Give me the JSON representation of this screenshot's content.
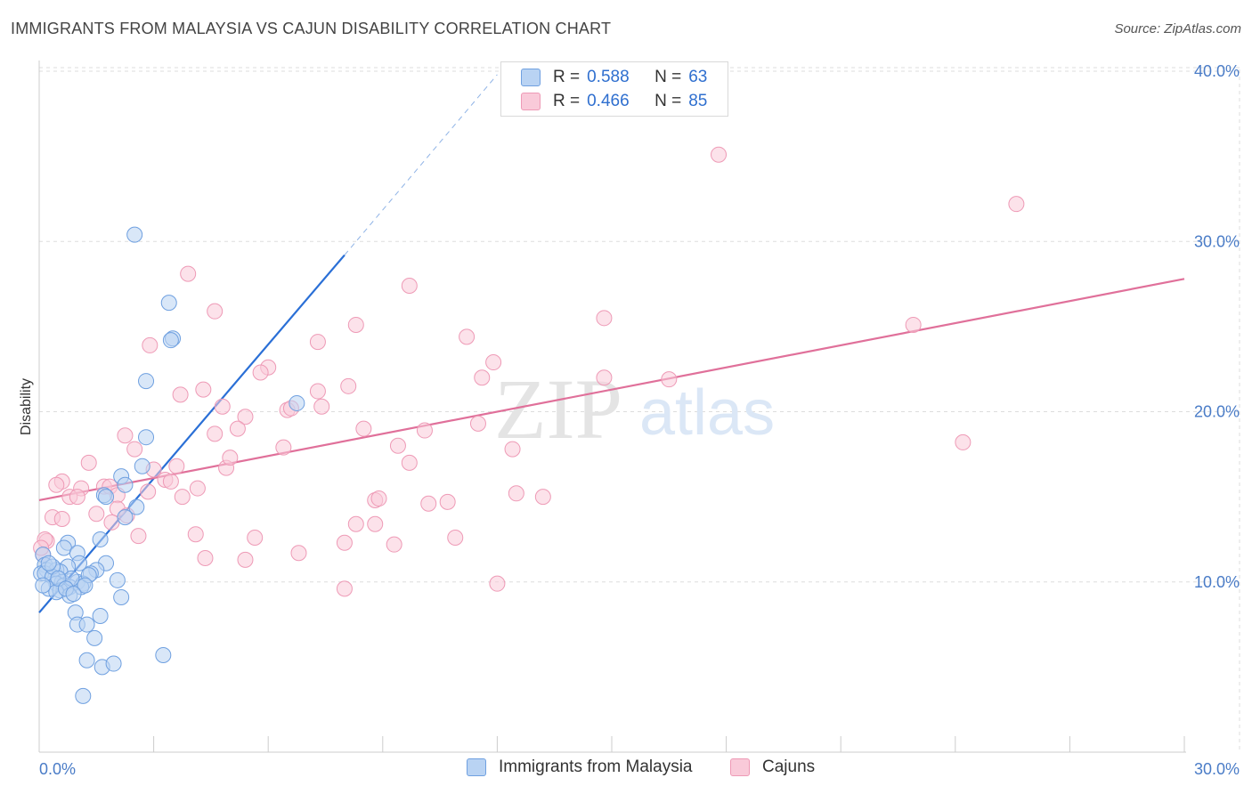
{
  "title": "IMMIGRANTS FROM MALAYSIA VS CAJUN DISABILITY CORRELATION CHART",
  "source": "Source: ZipAtlas.com",
  "watermark": {
    "zip": "ZIP",
    "atlas": "atlas"
  },
  "legend_top": {
    "rows": [
      {
        "r_label": "R =",
        "r_value": "0.588",
        "n_label": "N =",
        "n_value": "63"
      },
      {
        "r_label": "R =",
        "r_value": "0.466",
        "n_label": "N =",
        "n_value": "85"
      }
    ]
  },
  "legend_bottom": {
    "series_a": "Immigrants from Malaysia",
    "series_b": "Cajuns"
  },
  "colors": {
    "blue_fill": "#b9d3f3",
    "blue_stroke": "#6fa0e0",
    "blue_line": "#2a6fd6",
    "pink_fill": "#f9cad9",
    "pink_stroke": "#ee9ab6",
    "pink_line": "#e0709a",
    "tick_color": "#4a7cc7",
    "grid": "#dddddd"
  },
  "chart_data": {
    "type": "scatter",
    "title": "IMMIGRANTS FROM MALAYSIA VS CAJUN DISABILITY CORRELATION CHART",
    "xlabel": "",
    "ylabel": "Disability",
    "xlim": [
      0,
      30
    ],
    "ylim": [
      0,
      40
    ],
    "x_tick_labels": [
      {
        "value": 0,
        "label": "0.0%"
      },
      {
        "value": 30,
        "label": "30.0%"
      }
    ],
    "y_tick_labels": [
      {
        "value": 10,
        "label": "10.0%"
      },
      {
        "value": 20,
        "label": "20.0%"
      },
      {
        "value": 30,
        "label": "30.0%"
      },
      {
        "value": 40,
        "label": "40.0%"
      }
    ],
    "series": [
      {
        "name": "Immigrants from Malaysia",
        "color": "blue",
        "R": 0.588,
        "N": 63,
        "trend": {
          "x0": 0,
          "y0": 8.2,
          "x1": 8.0,
          "y1": 29.2,
          "dash_to_x": 12.0,
          "dash_to_y": 39.8
        },
        "points": [
          [
            2.5,
            30.4
          ],
          [
            3.4,
            26.4
          ],
          [
            3.5,
            24.3
          ],
          [
            3.45,
            24.2
          ],
          [
            2.8,
            21.8
          ],
          [
            6.75,
            20.5
          ],
          [
            2.8,
            18.5
          ],
          [
            2.7,
            16.8
          ],
          [
            2.15,
            16.2
          ],
          [
            2.25,
            15.7
          ],
          [
            1.7,
            15.1
          ],
          [
            1.75,
            15.0
          ],
          [
            2.55,
            14.4
          ],
          [
            2.25,
            13.8
          ],
          [
            1.6,
            12.5
          ],
          [
            0.75,
            12.3
          ],
          [
            0.65,
            12.0
          ],
          [
            1.0,
            11.7
          ],
          [
            0.1,
            11.6
          ],
          [
            1.75,
            11.1
          ],
          [
            0.15,
            11.0
          ],
          [
            1.05,
            11.1
          ],
          [
            0.75,
            10.9
          ],
          [
            0.2,
            10.7
          ],
          [
            0.45,
            10.7
          ],
          [
            1.5,
            10.7
          ],
          [
            0.55,
            10.6
          ],
          [
            1.35,
            10.5
          ],
          [
            0.05,
            10.5
          ],
          [
            0.15,
            10.5
          ],
          [
            0.35,
            10.3
          ],
          [
            2.05,
            10.1
          ],
          [
            0.6,
            10.0
          ],
          [
            1.0,
            10.0
          ],
          [
            1.15,
            9.9
          ],
          [
            0.45,
            9.9
          ],
          [
            0.65,
            9.8
          ],
          [
            0.8,
            9.7
          ],
          [
            1.1,
            9.7
          ],
          [
            0.25,
            9.6
          ],
          [
            0.55,
            9.5
          ],
          [
            0.45,
            9.4
          ],
          [
            0.8,
            9.2
          ],
          [
            2.15,
            9.1
          ],
          [
            1.6,
            8.0
          ],
          [
            0.95,
            8.2
          ],
          [
            1.0,
            7.5
          ],
          [
            1.25,
            7.5
          ],
          [
            1.45,
            6.7
          ],
          [
            1.25,
            5.4
          ],
          [
            3.25,
            5.7
          ],
          [
            1.65,
            5.0
          ],
          [
            1.95,
            5.2
          ],
          [
            1.15,
            3.3
          ],
          [
            0.1,
            9.8
          ],
          [
            0.35,
            10.9
          ],
          [
            0.85,
            10.2
          ],
          [
            1.3,
            10.4
          ],
          [
            0.5,
            10.2
          ],
          [
            0.25,
            11.1
          ],
          [
            0.7,
            9.6
          ],
          [
            1.2,
            9.8
          ],
          [
            0.9,
            9.3
          ]
        ]
      },
      {
        "name": "Cajuns",
        "color": "pink",
        "R": 0.466,
        "N": 85,
        "trend": {
          "x0": 0,
          "y0": 14.8,
          "x1": 30,
          "y1": 27.8
        },
        "points": [
          [
            17.8,
            35.1
          ],
          [
            25.6,
            32.2
          ],
          [
            3.9,
            28.1
          ],
          [
            9.7,
            27.4
          ],
          [
            4.6,
            25.9
          ],
          [
            14.8,
            25.5
          ],
          [
            8.3,
            25.1
          ],
          [
            22.9,
            25.1
          ],
          [
            11.2,
            24.4
          ],
          [
            7.3,
            24.1
          ],
          [
            2.9,
            23.9
          ],
          [
            11.9,
            22.9
          ],
          [
            6.0,
            22.6
          ],
          [
            5.8,
            22.3
          ],
          [
            11.6,
            22.0
          ],
          [
            14.8,
            22.0
          ],
          [
            16.5,
            21.9
          ],
          [
            4.3,
            21.3
          ],
          [
            3.7,
            21.0
          ],
          [
            7.3,
            21.2
          ],
          [
            8.1,
            21.5
          ],
          [
            4.8,
            20.3
          ],
          [
            7.4,
            20.3
          ],
          [
            6.5,
            20.1
          ],
          [
            6.6,
            20.2
          ],
          [
            5.4,
            19.7
          ],
          [
            11.5,
            19.3
          ],
          [
            10.1,
            18.9
          ],
          [
            5.2,
            19.0
          ],
          [
            8.5,
            19.0
          ],
          [
            4.6,
            18.7
          ],
          [
            2.25,
            18.6
          ],
          [
            9.4,
            18.0
          ],
          [
            6.4,
            17.9
          ],
          [
            2.5,
            17.8
          ],
          [
            12.4,
            17.8
          ],
          [
            24.2,
            18.2
          ],
          [
            1.3,
            17.0
          ],
          [
            9.7,
            17.0
          ],
          [
            3.6,
            16.8
          ],
          [
            4.9,
            16.7
          ],
          [
            3.0,
            16.6
          ],
          [
            5.0,
            17.3
          ],
          [
            0.6,
            15.9
          ],
          [
            0.45,
            15.7
          ],
          [
            1.7,
            15.6
          ],
          [
            1.1,
            15.5
          ],
          [
            1.85,
            15.6
          ],
          [
            3.3,
            16.0
          ],
          [
            3.45,
            15.9
          ],
          [
            4.15,
            15.5
          ],
          [
            2.85,
            15.3
          ],
          [
            12.5,
            15.2
          ],
          [
            13.2,
            15.0
          ],
          [
            3.75,
            15.0
          ],
          [
            0.8,
            15.0
          ],
          [
            1.0,
            15.0
          ],
          [
            2.05,
            15.1
          ],
          [
            8.8,
            14.8
          ],
          [
            8.9,
            14.9
          ],
          [
            10.7,
            14.7
          ],
          [
            10.2,
            14.6
          ],
          [
            1.5,
            14.0
          ],
          [
            2.05,
            14.3
          ],
          [
            2.3,
            13.9
          ],
          [
            0.35,
            13.8
          ],
          [
            0.6,
            13.7
          ],
          [
            1.9,
            13.5
          ],
          [
            8.3,
            13.4
          ],
          [
            8.8,
            13.4
          ],
          [
            2.6,
            12.7
          ],
          [
            4.1,
            12.8
          ],
          [
            5.65,
            12.6
          ],
          [
            10.9,
            12.6
          ],
          [
            0.2,
            12.4
          ],
          [
            0.15,
            12.5
          ],
          [
            8.0,
            12.3
          ],
          [
            9.3,
            12.2
          ],
          [
            6.8,
            11.7
          ],
          [
            0.1,
            11.6
          ],
          [
            4.35,
            11.4
          ],
          [
            5.4,
            11.3
          ],
          [
            8.0,
            9.6
          ],
          [
            12.0,
            9.9
          ],
          [
            0.05,
            12.0
          ]
        ]
      }
    ]
  }
}
